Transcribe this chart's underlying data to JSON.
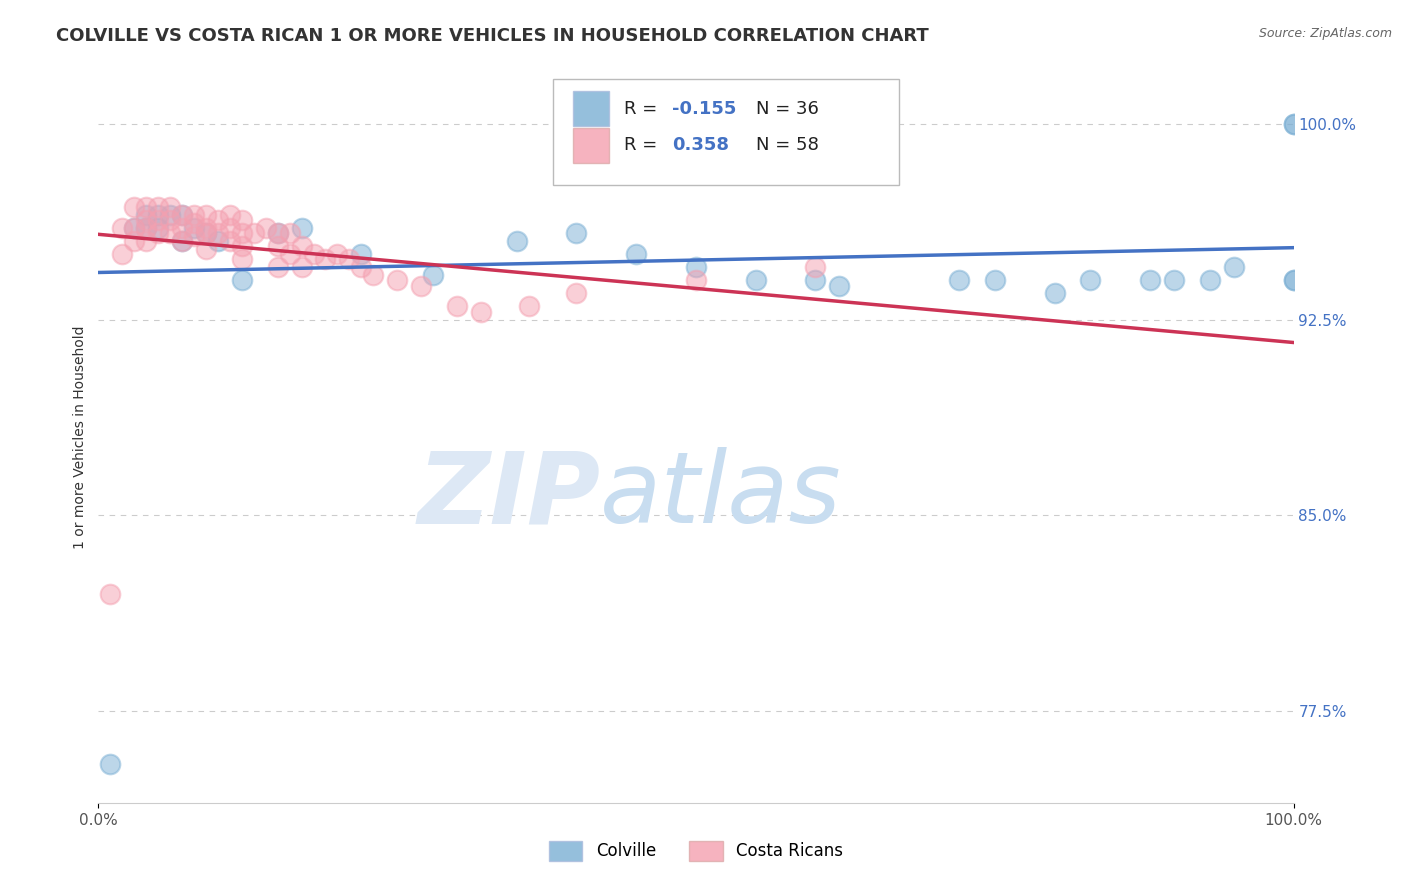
{
  "title": "COLVILLE VS COSTA RICAN 1 OR MORE VEHICLES IN HOUSEHOLD CORRELATION CHART",
  "source": "Source: ZipAtlas.com",
  "ylabel": "1 or more Vehicles in Household",
  "watermark_zip": "ZIP",
  "watermark_atlas": "atlas",
  "legend": {
    "colville_label": "Colville",
    "costa_rican_label": "Costa Ricans",
    "colville_R": -0.155,
    "colville_N": 36,
    "costa_rican_R": 0.358,
    "costa_rican_N": 58
  },
  "colville_color": "#7bafd4",
  "costa_rican_color": "#f4a0b0",
  "colville_line_color": "#4472c4",
  "costa_rican_line_color": "#cc3355",
  "colville_x": [
    0.01,
    0.03,
    0.04,
    0.04,
    0.05,
    0.05,
    0.06,
    0.07,
    0.07,
    0.08,
    0.09,
    0.1,
    0.12,
    0.15,
    0.17,
    0.22,
    0.28,
    0.35,
    0.4,
    0.45,
    0.5,
    0.55,
    0.6,
    0.62,
    0.72,
    0.75,
    0.8,
    0.83,
    0.88,
    0.9,
    0.93,
    0.95,
    1.0,
    1.0,
    1.0,
    1.0
  ],
  "colville_y": [
    0.755,
    0.96,
    0.96,
    0.965,
    0.96,
    0.965,
    0.965,
    0.965,
    0.955,
    0.96,
    0.958,
    0.955,
    0.94,
    0.958,
    0.96,
    0.95,
    0.942,
    0.955,
    0.958,
    0.95,
    0.945,
    0.94,
    0.94,
    0.938,
    0.94,
    0.94,
    0.935,
    0.94,
    0.94,
    0.94,
    0.94,
    0.945,
    1.0,
    1.0,
    0.94,
    0.94
  ],
  "costa_rican_x": [
    0.01,
    0.02,
    0.02,
    0.03,
    0.03,
    0.03,
    0.04,
    0.04,
    0.04,
    0.04,
    0.05,
    0.05,
    0.05,
    0.06,
    0.06,
    0.06,
    0.07,
    0.07,
    0.07,
    0.08,
    0.08,
    0.08,
    0.09,
    0.09,
    0.09,
    0.09,
    0.1,
    0.1,
    0.11,
    0.11,
    0.11,
    0.12,
    0.12,
    0.12,
    0.12,
    0.13,
    0.14,
    0.15,
    0.15,
    0.15,
    0.16,
    0.16,
    0.17,
    0.17,
    0.18,
    0.19,
    0.2,
    0.21,
    0.22,
    0.23,
    0.25,
    0.27,
    0.3,
    0.32,
    0.36,
    0.4,
    0.5,
    0.6
  ],
  "costa_rican_y": [
    0.82,
    0.96,
    0.95,
    0.968,
    0.96,
    0.955,
    0.968,
    0.963,
    0.96,
    0.955,
    0.968,
    0.963,
    0.958,
    0.968,
    0.963,
    0.958,
    0.965,
    0.96,
    0.955,
    0.965,
    0.962,
    0.957,
    0.965,
    0.96,
    0.958,
    0.952,
    0.963,
    0.958,
    0.965,
    0.96,
    0.955,
    0.963,
    0.958,
    0.953,
    0.948,
    0.958,
    0.96,
    0.958,
    0.953,
    0.945,
    0.958,
    0.95,
    0.953,
    0.945,
    0.95,
    0.948,
    0.95,
    0.948,
    0.945,
    0.942,
    0.94,
    0.938,
    0.93,
    0.928,
    0.93,
    0.935,
    0.94,
    0.945
  ],
  "xlim": [
    0.0,
    1.0
  ],
  "ylim": [
    0.74,
    1.02
  ],
  "yticks": [
    0.775,
    0.85,
    0.925,
    1.0
  ],
  "ytick_labels": [
    "77.5%",
    "85.0%",
    "92.5%",
    "100.0%"
  ],
  "xtick_labels": [
    "0.0%",
    "100.0%"
  ],
  "xticks": [
    0.0,
    1.0
  ],
  "grid_color": "#cccccc",
  "background_color": "#ffffff",
  "title_color": "#333333",
  "title_fontsize": 13,
  "axis_label_fontsize": 10,
  "tick_fontsize": 11
}
